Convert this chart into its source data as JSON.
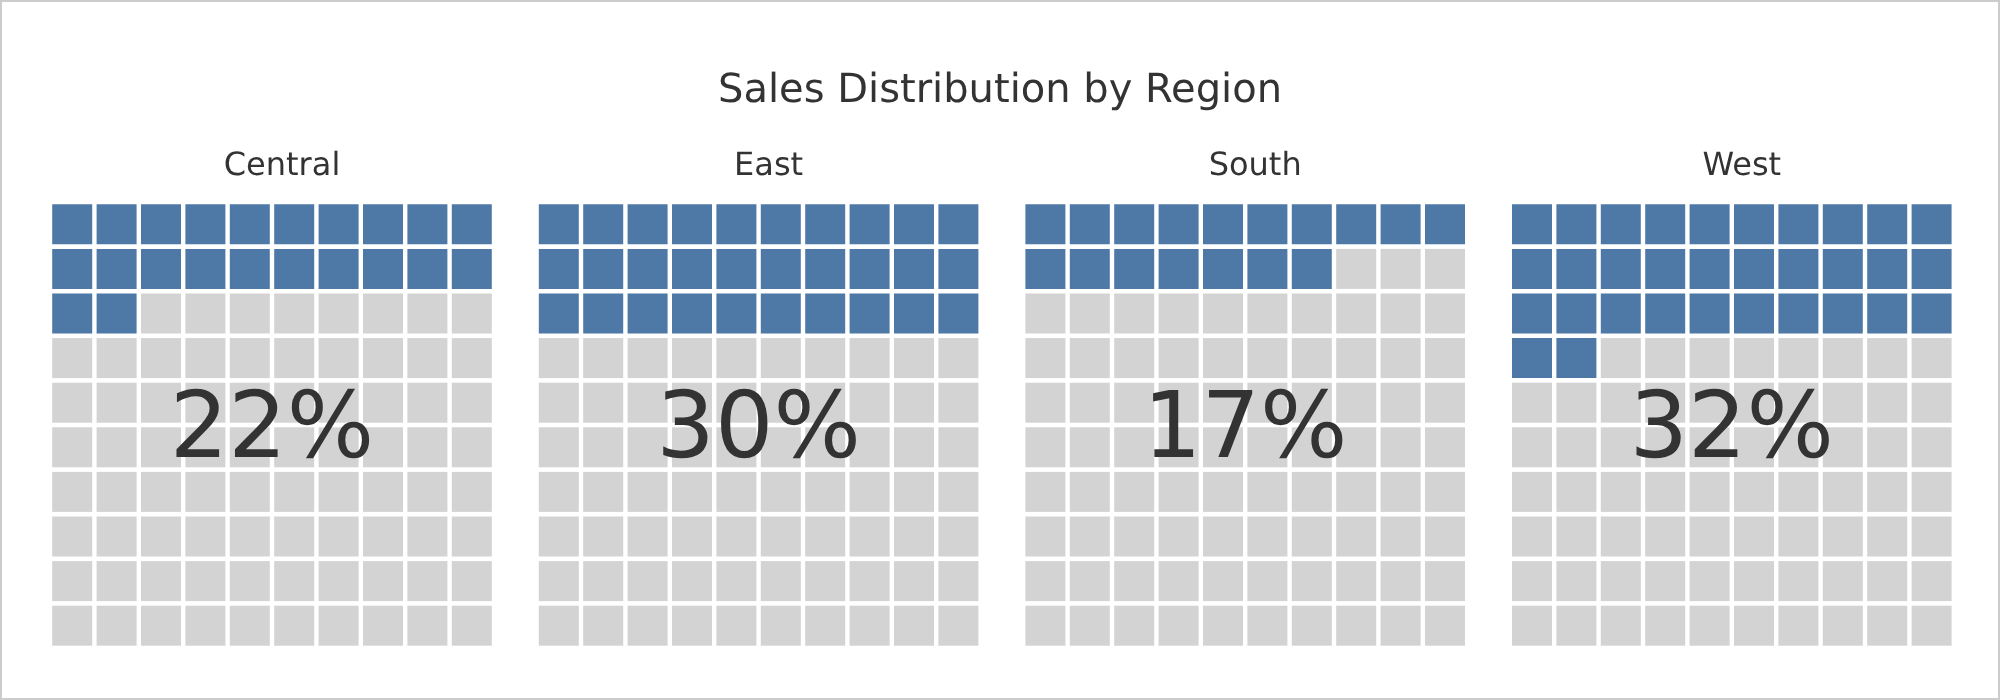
{
  "chart_data": {
    "type": "other",
    "title": "Sales Distribution by Region",
    "categories": [
      "Central",
      "East",
      "South",
      "West"
    ],
    "series": [
      {
        "color": "#4e79a7",
        "values": [
          22,
          30,
          17,
          32
        ],
        "value_labels": [
          "22%",
          "30%",
          "17%",
          "32%"
        ]
      }
    ]
  }
}
